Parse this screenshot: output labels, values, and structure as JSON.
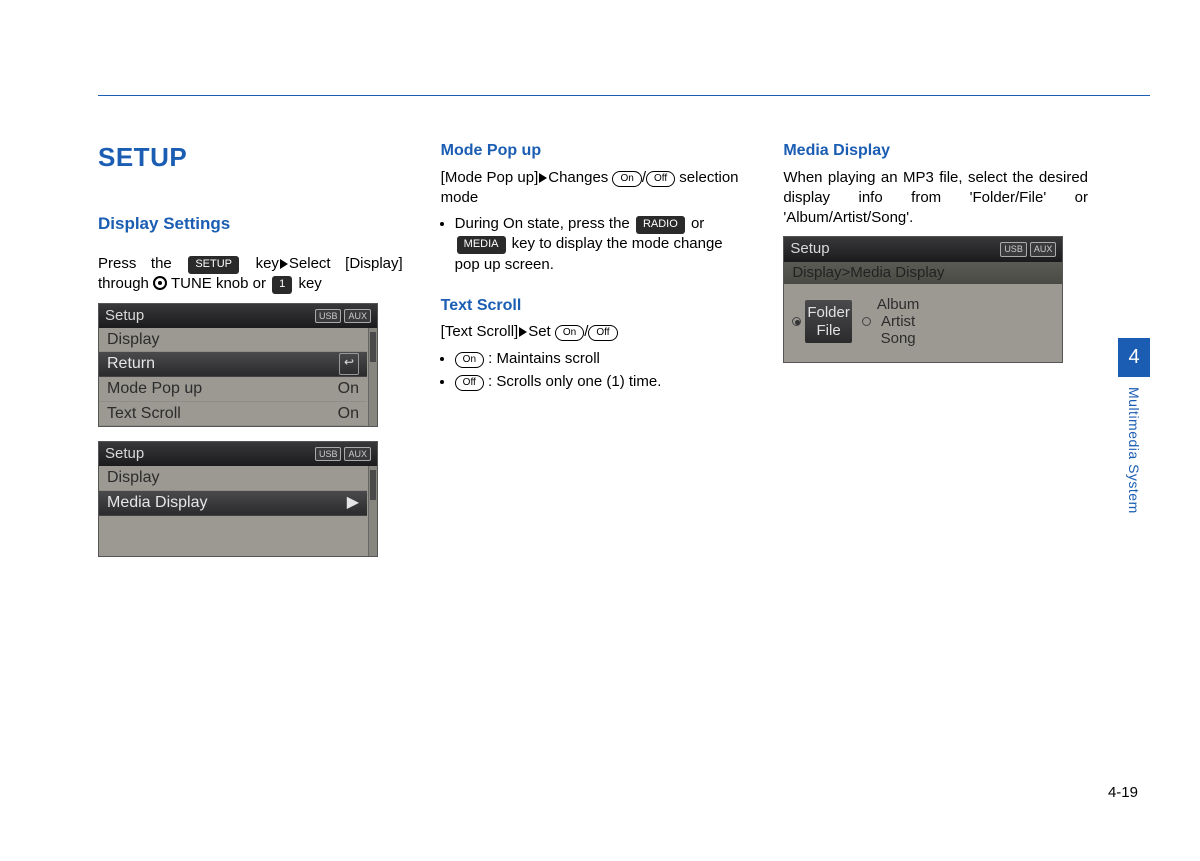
{
  "page": {
    "number": "4-19",
    "chapter_number": "4",
    "chapter_label": "Multimedia System"
  },
  "col1": {
    "h1": "SETUP",
    "h2": "Display Settings",
    "p1_pre": "Press the ",
    "key_setup": "SETUP",
    "p1_mid": " key",
    "p1_post": "Select [Display] through ",
    "p1_tune": " TUNE knob or ",
    "key_one": "1",
    "p1_end": " key",
    "lcd1": {
      "title": "Setup",
      "badges": [
        "USB",
        "AUX"
      ],
      "rows": [
        {
          "label": "Display",
          "value": "",
          "sel": false
        },
        {
          "label": "Return",
          "value": "↩",
          "sel": true
        },
        {
          "label": "Mode Pop up",
          "value": "On",
          "sel": false
        },
        {
          "label": "Text Scroll",
          "value": "On",
          "sel": false
        }
      ]
    },
    "lcd2": {
      "title": "Setup",
      "badges": [
        "USB",
        "AUX"
      ],
      "rows": [
        {
          "label": "Display",
          "value": "",
          "sel": false
        },
        {
          "label": "Media Display",
          "value": "▶",
          "sel": true
        }
      ]
    }
  },
  "col2": {
    "mode": {
      "h3": "Mode Pop up",
      "line1a": "[Mode Pop up]",
      "line1b": "Changes ",
      "on": "On",
      "off": "Off",
      "line1c": " selection mode",
      "bullet1a": "During On state, press the ",
      "key_radio": "RADIO",
      "bullet1b": " or ",
      "key_media": "MEDIA",
      "bullet1c": " key to display the mode change pop up screen."
    },
    "scroll": {
      "h3": "Text Scroll",
      "line1a": "[Text Scroll]",
      "line1b": "Set ",
      "on": "On",
      "off": "Off",
      "b1": " : Maintains scroll",
      "b2": " : Scrolls only one (1) time."
    }
  },
  "col3": {
    "h3": "Media Display",
    "p": "When playing an MP3 file, select the desired display info from 'Folder/File' or 'Album/Artist/Song'.",
    "lcd": {
      "title": "Setup",
      "badges": [
        "USB",
        "AUX"
      ],
      "crumb": "Display>Media Display",
      "opt1": [
        "Folder",
        "File"
      ],
      "opt2": [
        "Album",
        "Artist",
        "Song"
      ]
    }
  }
}
